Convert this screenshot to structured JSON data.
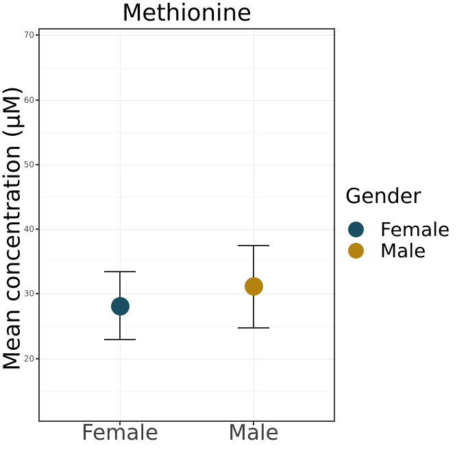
{
  "chart_data": {
    "type": "scatter",
    "title": "Methionine",
    "xlabel": "",
    "ylabel": "Mean concentration (µM)",
    "categories": [
      "Female",
      "Male"
    ],
    "series": [
      {
        "name": "Female",
        "color": "#1A4E63",
        "mean": 28.1,
        "lower": 22.9,
        "upper": 33.4
      },
      {
        "name": "Male",
        "color": "#B5830D",
        "mean": 31.1,
        "lower": 24.7,
        "upper": 37.5
      }
    ],
    "error_bars": "vertical whiskers with end caps",
    "ylim": [
      10.4,
      70.9
    ],
    "yticks_major": [
      20,
      30,
      40,
      50,
      60,
      70
    ],
    "yticks_minor": [
      15,
      25,
      35,
      45,
      55,
      65
    ],
    "grid": "horizontal major+minor; vertical at category positions",
    "legend_title": "Gender",
    "legend_position": "right",
    "legend_items": [
      {
        "label": "Female",
        "color": "#1A4E63"
      },
      {
        "label": "Male",
        "color": "#B5830D"
      }
    ]
  },
  "colors": {
    "background": "#FFFFFF",
    "panel_border": "#3F3F3F",
    "grid_major": "#EBEBEB",
    "grid_minor": "#F5F5F5",
    "errorbar": "#2E2E2E",
    "tick_mark": "#333333",
    "y_tick_label": "#4D4D4D",
    "x_tick_label": "#3D3D3D",
    "title": "#000000",
    "legend_text": "#000000"
  }
}
